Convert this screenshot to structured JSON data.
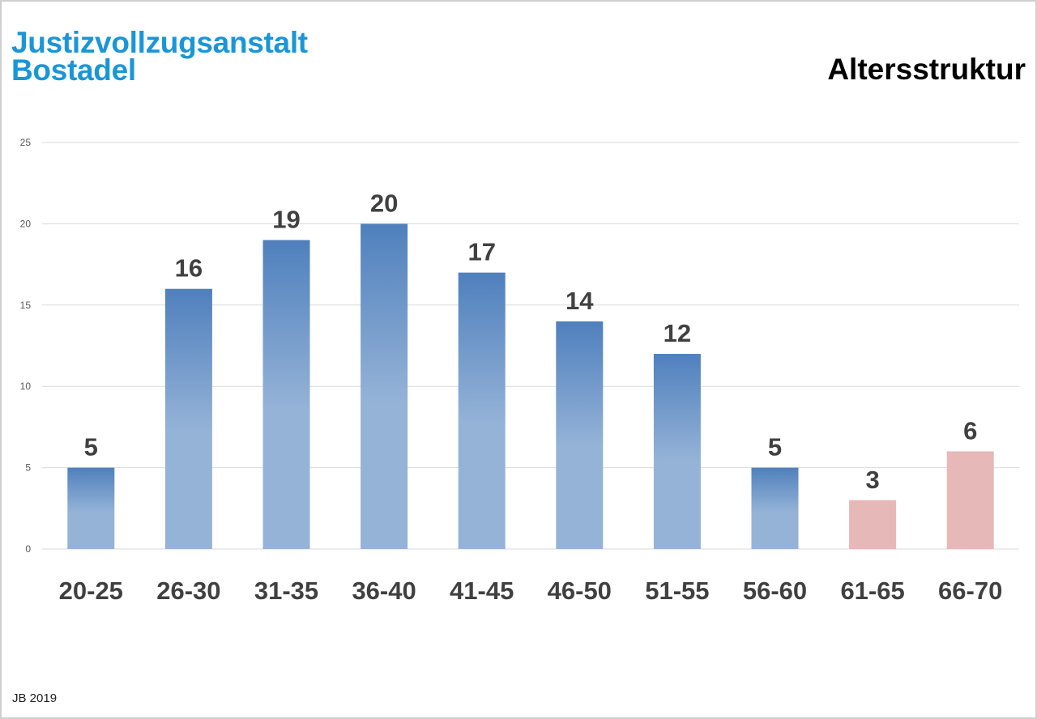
{
  "header": {
    "org_line1": "Justizvollzugsanstalt",
    "org_line2": "Bostadel"
  },
  "footer": {
    "note": "JB 2019"
  },
  "colors": {
    "org_title": "#1a96d6",
    "bar_blue_top": "#4f80bd",
    "bar_blue_bottom": "#95b3d7",
    "bar_pink": "#e6b8b7",
    "grid": "#d9d9d9",
    "label": "#404040"
  },
  "chart_data": {
    "type": "bar",
    "title": "Altersstruktur",
    "xlabel": "",
    "ylabel": "",
    "categories": [
      "20-25",
      "26-30",
      "31-35",
      "36-40",
      "41-45",
      "46-50",
      "51-55",
      "56-60",
      "61-65",
      "66-70"
    ],
    "values": [
      5,
      16,
      19,
      20,
      17,
      14,
      12,
      5,
      3,
      6
    ],
    "bar_colors": [
      "blue",
      "blue",
      "blue",
      "blue",
      "blue",
      "blue",
      "blue",
      "blue",
      "pink",
      "pink"
    ],
    "ylim": [
      0,
      25
    ],
    "yticks": [
      0,
      5,
      10,
      15,
      20,
      25
    ],
    "grid": true,
    "legend": "none",
    "data_labels": true
  }
}
